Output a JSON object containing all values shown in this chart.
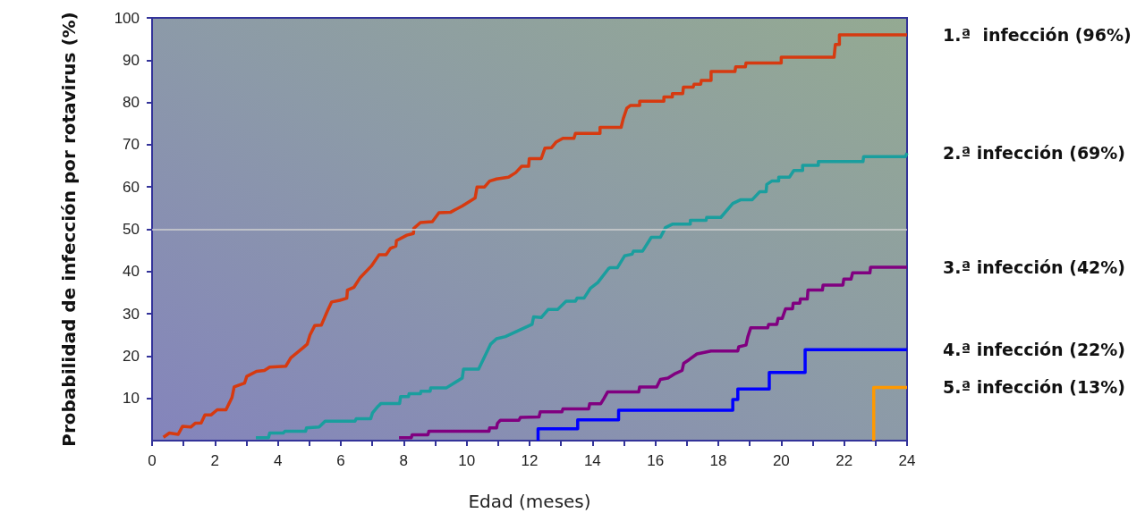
{
  "chart_data": {
    "type": "line",
    "xlabel": "Edad (meses)",
    "ylabel": "Probabilidad de infección por rotavirus (%)",
    "xlim": [
      0,
      24
    ],
    "ylim": [
      0,
      100
    ],
    "xticks": [
      0,
      {
        "value": 1,
        "label": null
      },
      2,
      {
        "value": 3,
        "label": null
      },
      4,
      {
        "value": 5,
        "label": null
      },
      6,
      {
        "value": 7,
        "label": null
      },
      8,
      {
        "value": 9,
        "label": null
      },
      10,
      {
        "value": 11,
        "label": null
      },
      12,
      {
        "value": 13,
        "label": null
      },
      14,
      {
        "value": 15,
        "label": null
      },
      16,
      {
        "value": 17,
        "label": null
      },
      18,
      {
        "value": 19,
        "label": null
      },
      20,
      {
        "value": 21,
        "label": null
      },
      22,
      {
        "value": 23,
        "label": null
      },
      24
    ],
    "yticks": [
      10,
      20,
      30,
      40,
      50,
      60,
      70,
      80,
      90,
      100
    ],
    "grid": false,
    "legend": false,
    "marker": "none",
    "line_style": "solid",
    "ref_lines": [
      {
        "axis": "y",
        "value": 50,
        "color": "#d0d0d0"
      }
    ],
    "series": [
      {
        "name": "1.ª  infección (96%)",
        "color": "#d63a10",
        "x": [
          0.36,
          0.55,
          0.83,
          0.97,
          1.23,
          1.37,
          1.56,
          1.68,
          1.88,
          2.07,
          2.35,
          2.54,
          2.61,
          2.94,
          3.01,
          3.32,
          3.57,
          3.74,
          4.25,
          4.41,
          4.79,
          4.93,
          5.02,
          5.17,
          5.38,
          5.57,
          5.71,
          5.97,
          6.19,
          6.21,
          6.42,
          6.62,
          6.97,
          7.22,
          7.44,
          7.58,
          7.75,
          7.77,
          8.1,
          8.31,
          8.32,
          8.53,
          8.91,
          9.12,
          9.48,
          9.86,
          10.27,
          10.33,
          10.57,
          10.73,
          10.95,
          11.33,
          11.56,
          11.75,
          11.97,
          11.99,
          12.37,
          12.49,
          12.7,
          12.84,
          13.06,
          13.41,
          13.46,
          14.24,
          14.24,
          14.91,
          14.98,
          15.09,
          15.21,
          15.5,
          15.5,
          16.27,
          16.27,
          16.54,
          16.54,
          16.87,
          16.89,
          17.2,
          17.23,
          17.44,
          17.46,
          17.77,
          17.77,
          18.53,
          18.55,
          18.86,
          18.88,
          20.0,
          20.0,
          21.68,
          21.72,
          21.85,
          21.85,
          24
        ],
        "values": [
          0.8,
          1.8,
          1.5,
          3.4,
          3.2,
          4.1,
          4.2,
          6.1,
          6.1,
          7.3,
          7.3,
          10.2,
          12.7,
          13.6,
          15.2,
          16.4,
          16.6,
          17.4,
          17.6,
          19.6,
          21.9,
          22.8,
          25.0,
          27.2,
          27.3,
          30.6,
          32.8,
          33.2,
          33.7,
          35.6,
          36.3,
          38.6,
          41.3,
          44.0,
          44.0,
          45.5,
          46.0,
          47.3,
          48.6,
          49.0,
          50.2,
          51.6,
          51.8,
          53.9,
          54.0,
          55.5,
          57.4,
          60.0,
          60.0,
          61.4,
          61.9,
          62.3,
          63.4,
          64.9,
          64.9,
          66.7,
          66.7,
          69.2,
          69.3,
          70.6,
          71.5,
          71.5,
          72.7,
          72.7,
          74.1,
          74.1,
          76.2,
          78.6,
          79.3,
          79.3,
          80.3,
          80.3,
          81.3,
          81.3,
          82.1,
          82.1,
          83.6,
          83.6,
          84.3,
          84.3,
          85.2,
          85.2,
          87.3,
          87.3,
          88.4,
          88.4,
          89.3,
          89.3,
          90.7,
          90.7,
          93.7,
          93.7,
          96,
          96
        ]
      },
      {
        "name": "2.ª infección (69%)",
        "color": "#1a9e9e",
        "x": [
          3.3,
          3.7,
          3.74,
          4.17,
          4.22,
          4.88,
          4.91,
          5.31,
          5.5,
          6.45,
          6.49,
          6.95,
          7.01,
          7.18,
          7.28,
          7.87,
          7.9,
          8.15,
          8.17,
          8.53,
          8.55,
          8.84,
          8.86,
          9.36,
          9.86,
          9.9,
          10.38,
          10.76,
          10.95,
          11.23,
          12.08,
          12.13,
          12.37,
          12.59,
          12.89,
          13.16,
          13.46,
          13.51,
          13.73,
          13.93,
          14.17,
          14.5,
          14.55,
          14.79,
          15.02,
          15.26,
          15.3,
          15.59,
          15.87,
          16.16,
          16.32,
          16.54,
          17.11,
          17.11,
          17.61,
          17.63,
          18.08,
          18.46,
          18.72,
          19.08,
          19.32,
          19.52,
          19.54,
          19.7,
          19.92,
          19.92,
          20.26,
          20.4,
          20.68,
          20.68,
          21.18,
          21.18,
          22.6,
          22.62,
          23.95,
          24
        ],
        "values": [
          0.7,
          0.7,
          1.8,
          1.8,
          2.2,
          2.2,
          3.0,
          3.2,
          4.6,
          4.6,
          5.2,
          5.2,
          6.6,
          8.1,
          8.8,
          8.8,
          10.4,
          10.4,
          11.1,
          11.1,
          11.7,
          11.7,
          12.5,
          12.5,
          14.8,
          16.9,
          16.9,
          22.8,
          24.1,
          24.6,
          27.5,
          29.3,
          29.1,
          31.0,
          31.0,
          33.0,
          33.0,
          33.7,
          33.7,
          36.0,
          37.4,
          40.6,
          40.9,
          40.9,
          43.7,
          44.1,
          44.8,
          44.8,
          48.1,
          48.1,
          50.4,
          51.2,
          51.2,
          52.1,
          52.1,
          52.8,
          52.8,
          56.1,
          57.0,
          57.0,
          58.9,
          58.9,
          60.6,
          61.4,
          61.4,
          62.3,
          62.3,
          63.9,
          63.9,
          65.1,
          65.1,
          66.0,
          66.0,
          67.2,
          67.2,
          68
        ]
      },
      {
        "name": "3.ª infección (42%)",
        "color": "#800080",
        "x": [
          7.85,
          8.24,
          8.27,
          8.77,
          8.8,
          10.71,
          10.73,
          10.95,
          10.98,
          11.07,
          11.66,
          11.71,
          12.3,
          12.34,
          13.03,
          13.06,
          13.88,
          13.91,
          14.26,
          14.36,
          14.48,
          15.47,
          15.5,
          16.04,
          16.16,
          16.4,
          16.64,
          16.85,
          16.9,
          17.08,
          17.32,
          17.77,
          18.62,
          18.65,
          18.88,
          18.94,
          19.03,
          19.57,
          19.6,
          19.86,
          19.9,
          20.03,
          20.14,
          20.36,
          20.38,
          20.59,
          20.61,
          20.83,
          20.85,
          21.31,
          21.33,
          21.96,
          21.99,
          22.22,
          22.27,
          22.82,
          22.84,
          24
        ],
        "values": [
          0.7,
          0.7,
          1.4,
          1.4,
          2.2,
          2.2,
          3.0,
          3.0,
          4.1,
          4.8,
          4.8,
          5.5,
          5.6,
          6.8,
          6.8,
          7.5,
          7.5,
          8.7,
          8.7,
          9.9,
          11.5,
          11.5,
          12.7,
          12.7,
          14.5,
          14.8,
          15.9,
          16.6,
          18.3,
          19.2,
          20.5,
          21.2,
          21.2,
          22.2,
          22.6,
          24.6,
          26.7,
          26.7,
          27.5,
          27.5,
          28.9,
          28.9,
          31.2,
          31.2,
          32.5,
          32.5,
          33.5,
          33.5,
          35.6,
          35.6,
          36.8,
          36.8,
          38.2,
          38.2,
          39.7,
          39.7,
          41,
          41
        ]
      },
      {
        "name": "4.ª infección (22%)",
        "color": "#0000ff",
        "x": [
          12.27,
          12.27,
          13.53,
          13.53,
          14.83,
          14.83,
          18.46,
          18.46,
          18.62,
          18.62,
          19.62,
          19.62,
          20.76,
          20.76,
          24
        ],
        "values": [
          0,
          2.8,
          2.8,
          4.9,
          4.9,
          7.2,
          7.2,
          9.7,
          9.7,
          12.2,
          12.2,
          16.1,
          16.1,
          21.5,
          21.5
        ]
      },
      {
        "name": "5.ª infección (13%)",
        "color": "#ff9900",
        "x": [
          22.94,
          22.94,
          24
        ],
        "values": [
          0,
          12.6,
          12.6
        ]
      }
    ]
  }
}
